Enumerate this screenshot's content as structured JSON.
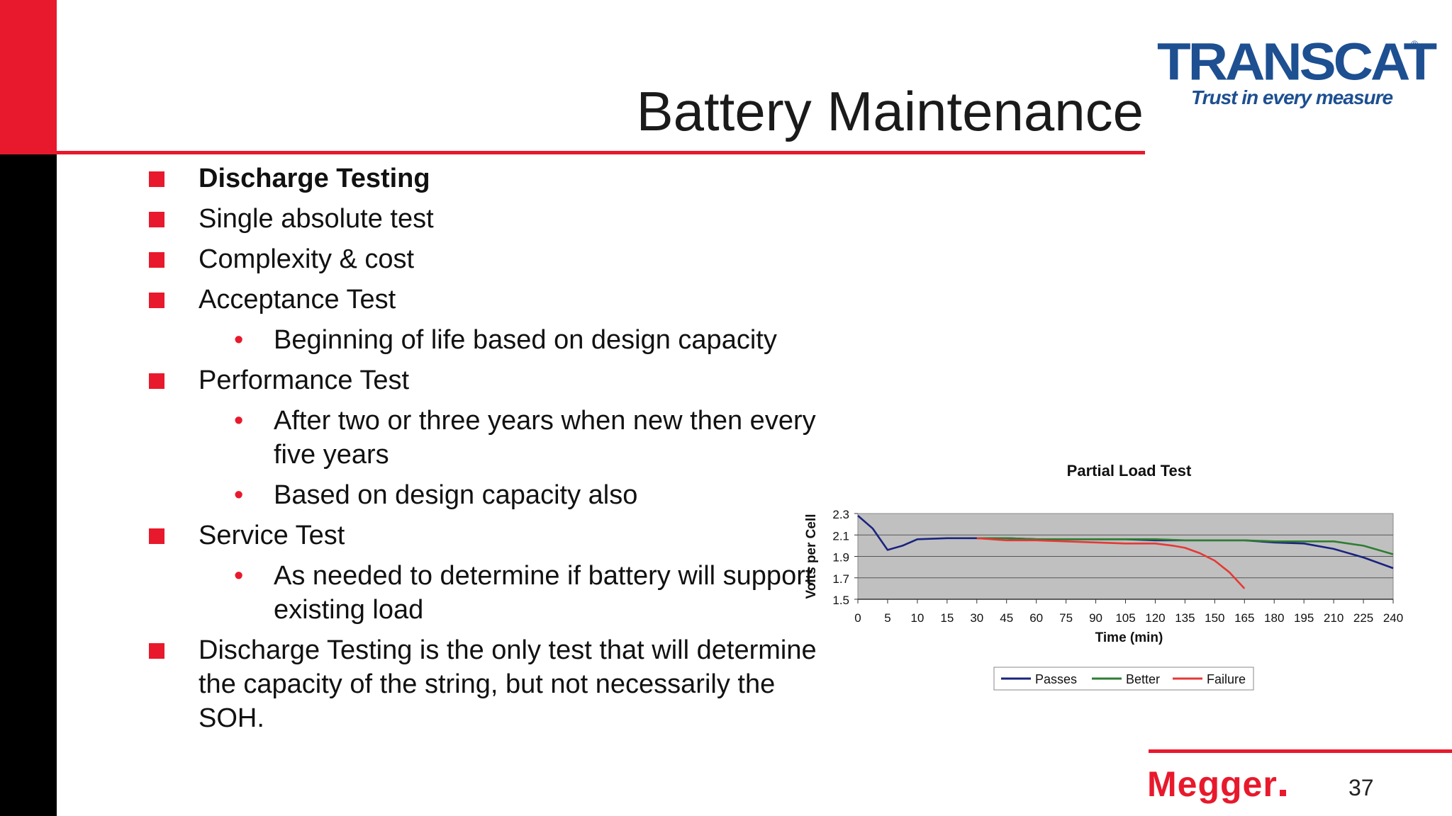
{
  "slide": {
    "title": "Battery Maintenance",
    "page_number": "37"
  },
  "logo": {
    "brand": "TRANSCAT",
    "registered": "®",
    "tagline": "Trust in every measure"
  },
  "footer_logo": {
    "brand": "Megger"
  },
  "bullets": [
    {
      "text": "Discharge Testing",
      "level": 1,
      "bold": true
    },
    {
      "text": "Single absolute test",
      "level": 1,
      "bold": false
    },
    {
      "text": "Complexity & cost",
      "level": 1,
      "bold": false
    },
    {
      "text": "Acceptance Test",
      "level": 1,
      "bold": false
    },
    {
      "text": "Beginning of life based on design capacity",
      "level": 2,
      "bold": false
    },
    {
      "text": "Performance Test",
      "level": 1,
      "bold": false
    },
    {
      "text": "After two or three years when new then every five years",
      "level": 2,
      "bold": false
    },
    {
      "text": "Based on design capacity also",
      "level": 2,
      "bold": false
    },
    {
      "text": "Service Test",
      "level": 1,
      "bold": false
    },
    {
      "text": "As needed to determine if battery will support existing load",
      "level": 2,
      "bold": false
    },
    {
      "text": "Discharge Testing is the only test that will determine the capacity of the string, but not necessarily the SOH.",
      "level": 1,
      "bold": false
    }
  ],
  "colors": {
    "accent_red": "#e8192c",
    "logo_blue": "#1d4f91",
    "plot_bg": "#c0c0c0"
  },
  "chart_data": {
    "type": "line",
    "title": "Partial Load Test",
    "xlabel": "Time (min)",
    "ylabel": "Volts per Cell",
    "x_categories": [
      "0",
      "5",
      "10",
      "15",
      "30",
      "45",
      "60",
      "75",
      "90",
      "105",
      "120",
      "135",
      "150",
      "165",
      "180",
      "195",
      "210",
      "225",
      "240"
    ],
    "ylim": [
      1.5,
      2.3
    ],
    "yticks": [
      "2.3",
      "2.1",
      "1.9",
      "1.7",
      "1.5"
    ],
    "grid": true,
    "legend_position": "bottom",
    "series": [
      {
        "name": "Passes",
        "color": "#1a237e",
        "points": [
          [
            0,
            2.28
          ],
          [
            0.5,
            2.16
          ],
          [
            1,
            1.96
          ],
          [
            1.5,
            2.0
          ],
          [
            2,
            2.06
          ],
          [
            3,
            2.07
          ],
          [
            4,
            2.07
          ],
          [
            5,
            2.07
          ],
          [
            6,
            2.06
          ],
          [
            7,
            2.06
          ],
          [
            8,
            2.06
          ],
          [
            9,
            2.06
          ],
          [
            10,
            2.05
          ],
          [
            11,
            2.05
          ],
          [
            12,
            2.05
          ],
          [
            13,
            2.05
          ],
          [
            14,
            2.03
          ],
          [
            15,
            2.02
          ],
          [
            16,
            1.97
          ],
          [
            17,
            1.89
          ],
          [
            18,
            1.79
          ]
        ]
      },
      {
        "name": "Better",
        "color": "#2e7d32",
        "points": [
          [
            4,
            2.07
          ],
          [
            5,
            2.07
          ],
          [
            6,
            2.06
          ],
          [
            7,
            2.06
          ],
          [
            8,
            2.06
          ],
          [
            9,
            2.06
          ],
          [
            10,
            2.06
          ],
          [
            11,
            2.05
          ],
          [
            12,
            2.05
          ],
          [
            13,
            2.05
          ],
          [
            14,
            2.04
          ],
          [
            15,
            2.04
          ],
          [
            16,
            2.04
          ],
          [
            17,
            2.0
          ],
          [
            18,
            1.92
          ]
        ]
      },
      {
        "name": "Failure",
        "color": "#e53935",
        "points": [
          [
            4,
            2.07
          ],
          [
            5,
            2.05
          ],
          [
            6,
            2.05
          ],
          [
            7,
            2.04
          ],
          [
            8,
            2.03
          ],
          [
            9,
            2.02
          ],
          [
            10,
            2.02
          ],
          [
            10.6,
            2.0
          ],
          [
            11,
            1.98
          ],
          [
            11.5,
            1.93
          ],
          [
            12,
            1.86
          ],
          [
            12.5,
            1.75
          ],
          [
            13,
            1.6
          ]
        ]
      }
    ]
  }
}
